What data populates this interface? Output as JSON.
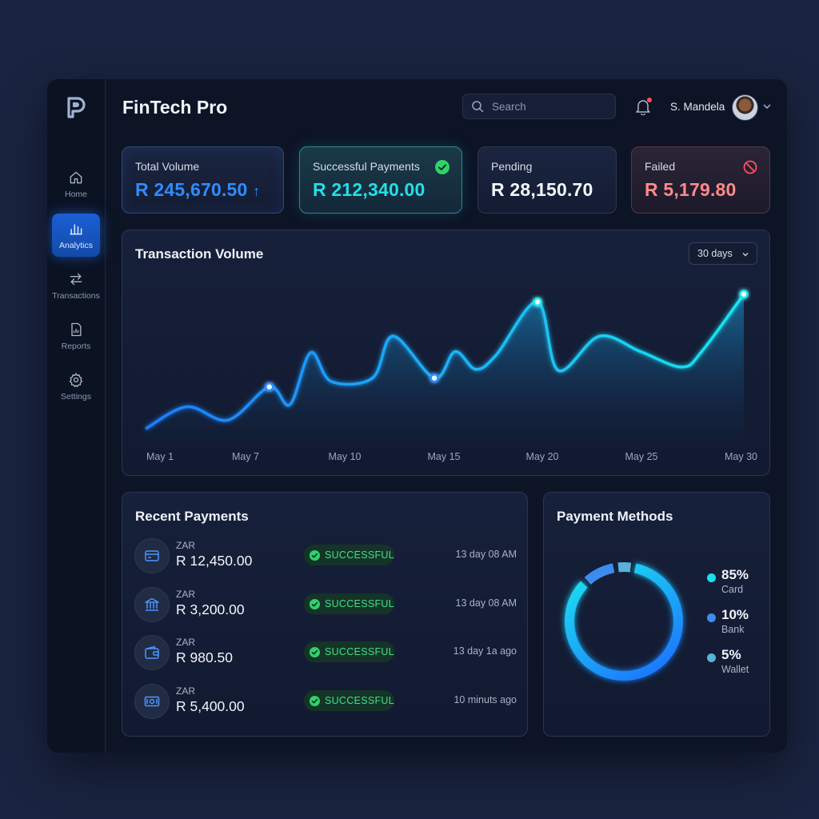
{
  "app": {
    "title": "FinTech Pro"
  },
  "sidebar": {
    "items": [
      {
        "label": "Home",
        "icon": "home-icon"
      },
      {
        "label": "Analytics",
        "icon": "bar-chart-icon",
        "active": true
      },
      {
        "label": "Transactions",
        "icon": "transfer-arrows-icon"
      },
      {
        "label": "Reports",
        "icon": "report-document-icon"
      },
      {
        "label": "Settings",
        "icon": "gear-icon"
      }
    ]
  },
  "header": {
    "search_placeholder": "Search",
    "user_name": "S. Mandela",
    "has_notification": true
  },
  "stats": [
    {
      "label": "Total Volume",
      "value": "R 245,670.50",
      "trend": "↑",
      "color": "#2f8cff"
    },
    {
      "label": "Successful Payments",
      "value": "R 212,340.00",
      "icon": "check-circle-icon",
      "color": "#22e0e8"
    },
    {
      "label": "Pending",
      "value": "R 28,150.70",
      "color": "#f3f6fb"
    },
    {
      "label": "Failed",
      "value": "R 5,179.80",
      "icon": "blocked-circle-icon",
      "color": "#ff8a8a"
    }
  ],
  "transaction_volume": {
    "title": "Transaction Volume",
    "range": "30 days"
  },
  "chart_data": {
    "type": "area",
    "title": "Transaction Volume",
    "x_tick_labels": [
      "May 1",
      "May 7",
      "May 10",
      "May 15",
      "May 20",
      "May 25",
      "May 30"
    ],
    "x": [
      1,
      3,
      5,
      7,
      8,
      9,
      10,
      12,
      13,
      15,
      16,
      17,
      18,
      20,
      21,
      23,
      25,
      27,
      28,
      30
    ],
    "values": [
      10,
      30,
      18,
      48,
      32,
      79,
      53,
      56,
      94,
      56,
      80,
      64,
      77,
      125,
      63,
      94,
      80,
      66,
      81,
      132
    ],
    "highlighted_points": [
      {
        "x": 7,
        "value": 48
      },
      {
        "x": 15,
        "value": 56
      },
      {
        "x": 20,
        "value": 125
      },
      {
        "x": 30,
        "value": 132
      }
    ],
    "xlim": [
      1,
      30
    ],
    "ylim": [
      0,
      150
    ],
    "grid": false,
    "colors": {
      "start": "#1e7bff",
      "end": "#18e6ee"
    }
  },
  "recent_payments": {
    "title": "Recent Payments",
    "rows": [
      {
        "currency": "ZAR",
        "amount": "R 12,450.00",
        "status": "SUCCESSFUL",
        "time": "13 day 08 AM",
        "icon": "credit-card-icon"
      },
      {
        "currency": "ZAR",
        "amount": "R 3,200.00",
        "status": "SUCCESSFUL",
        "time": "13 day 08 AM",
        "icon": "bank-icon"
      },
      {
        "currency": "ZAR",
        "amount": "R 980.50",
        "status": "SUCCESSFUL",
        "time": "13 day 1a ago",
        "icon": "wallet-icon"
      },
      {
        "currency": "ZAR",
        "amount": "R 5,400.00",
        "status": "SUCCESSFUL",
        "time": "10 minuts ago",
        "icon": "cash-icon"
      }
    ]
  },
  "payment_methods": {
    "title": "Payment Methods",
    "items": [
      {
        "pct": "85%",
        "label": "Card",
        "color": "#19e0ef",
        "share": 0.85
      },
      {
        "pct": "10%",
        "label": "Bank",
        "color": "#3c8cf0",
        "share": 0.1
      },
      {
        "pct": "5%",
        "label": "Wallet",
        "color": "#5ab2d8",
        "share": 0.05
      }
    ]
  }
}
